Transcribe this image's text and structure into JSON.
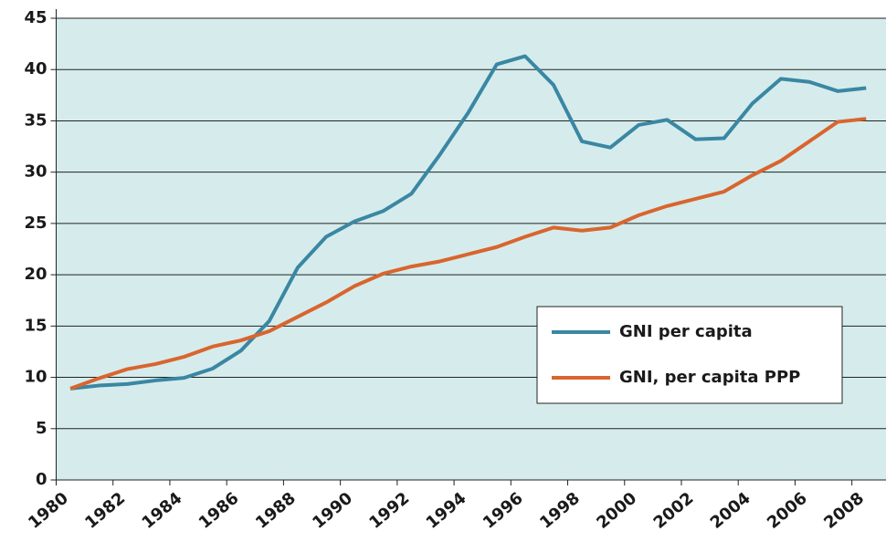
{
  "chart_data": {
    "type": "line",
    "x": [
      1980.5,
      1981.5,
      1982.5,
      1983.5,
      1984.5,
      1985.5,
      1986.5,
      1987.5,
      1988.5,
      1989.5,
      1990.5,
      1991.5,
      1992.5,
      1993.5,
      1994.5,
      1995.5,
      1996.5,
      1997.5,
      1998.5,
      1999.5,
      2000.5,
      2001.5,
      2002.5,
      2003.5,
      2004.5,
      2005.5,
      2006.5,
      2007.5,
      2008.5
    ],
    "series": [
      {
        "name": "GNI per capita",
        "color": "#3a87a3",
        "values": [
          8.9,
          9.2,
          9.35,
          9.7,
          9.95,
          10.85,
          12.6,
          15.5,
          20.7,
          23.7,
          25.2,
          26.2,
          27.9,
          31.7,
          35.8,
          40.5,
          41.3,
          38.5,
          33.0,
          32.4,
          34.6,
          35.1,
          33.2,
          33.3,
          36.7,
          39.1,
          38.8,
          37.9,
          38.2
        ]
      },
      {
        "name": "GNI, per capita PPP",
        "color": "#d9652e",
        "values": [
          8.9,
          9.9,
          10.8,
          11.3,
          12.0,
          13.0,
          13.6,
          14.5,
          15.9,
          17.3,
          18.9,
          20.1,
          20.8,
          21.3,
          22.0,
          22.7,
          23.7,
          24.6,
          24.3,
          24.6,
          25.8,
          26.7,
          27.4,
          28.1,
          29.7,
          31.1,
          33.0,
          34.9,
          35.2
        ]
      }
    ],
    "xlim": [
      1980,
      2009.2
    ],
    "xticks": [
      1980,
      1982,
      1984,
      1986,
      1988,
      1990,
      1992,
      1994,
      1996,
      1998,
      2000,
      2002,
      2004,
      2006,
      2008
    ],
    "ylim": [
      0,
      45
    ],
    "yticks": [
      0,
      5,
      10,
      15,
      20,
      25,
      30,
      35,
      40,
      45
    ],
    "grid": true,
    "background": "#d6ecec",
    "legend": "right"
  }
}
